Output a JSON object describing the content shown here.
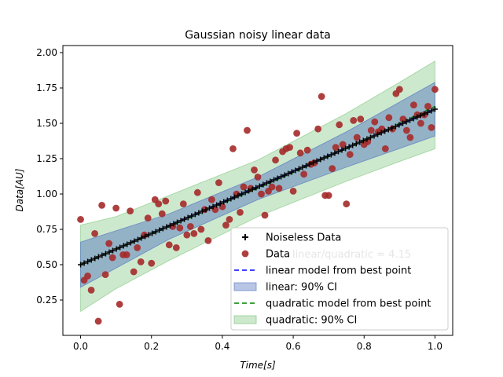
{
  "chart_data": {
    "type": "scatter",
    "title": "Gaussian noisy linear data",
    "xlabel": "Time[s]",
    "ylabel": "Data[AU]",
    "xlim": [
      -0.05,
      1.05
    ],
    "ylim": [
      0.0,
      2.05
    ],
    "xticks": [
      "0.0",
      "0.2",
      "0.4",
      "0.6",
      "0.8",
      "1.0"
    ],
    "yticks": [
      "0.25",
      "0.50",
      "0.75",
      "1.00",
      "1.25",
      "1.50",
      "1.75",
      "2.00"
    ],
    "grid": false,
    "legend_position": "lower right",
    "annotation": "linear/quadratic = 4.15",
    "colors": {
      "noiseless": "#000000",
      "data": "#a52a2a",
      "linear_line": "#0000ff",
      "linear_ci": "#4f6fbf",
      "quadratic_line": "#008000",
      "quadratic_ci": "#6fbf6f"
    },
    "legend": [
      {
        "key": "noiseless",
        "label": "Noiseless Data"
      },
      {
        "key": "data",
        "label": "Data"
      },
      {
        "key": "linear_line",
        "label": "linear model from best point"
      },
      {
        "key": "linear_ci",
        "label": "linear: 90% CI"
      },
      {
        "key": "quadratic_line",
        "label": "quadratic model from best point"
      },
      {
        "key": "quadratic_ci",
        "label": "quadratic: 90% CI"
      }
    ],
    "noiseless": {
      "x_start": 0.0,
      "x_end": 1.0,
      "y_start": 0.5,
      "y_end": 1.6,
      "count": 100
    },
    "linear_model": {
      "x": [
        0.0,
        1.0
      ],
      "y": [
        0.5,
        1.6
      ]
    },
    "quadratic_model": {
      "x": [
        0.0,
        0.25,
        0.5,
        0.75,
        1.0
      ],
      "y": [
        0.5,
        0.77,
        1.04,
        1.32,
        1.62
      ]
    },
    "linear_ci": {
      "x": [
        0.0,
        0.25,
        0.5,
        0.75,
        1.0
      ],
      "upper": [
        0.66,
        0.86,
        1.12,
        1.44,
        1.79
      ],
      "lower": [
        0.34,
        0.68,
        0.96,
        1.19,
        1.41
      ]
    },
    "quadratic_ci": {
      "x": [
        0.0,
        0.1,
        0.25,
        0.5,
        0.75,
        0.9,
        1.0
      ],
      "upper": [
        0.78,
        0.84,
        0.99,
        1.24,
        1.57,
        1.79,
        1.94
      ],
      "lower": [
        0.17,
        0.33,
        0.53,
        0.84,
        1.09,
        1.23,
        1.32
      ]
    },
    "data_points": {
      "x": [
        0.0,
        0.01,
        0.02,
        0.03,
        0.04,
        0.05,
        0.06,
        0.07,
        0.08,
        0.09,
        0.1,
        0.11,
        0.12,
        0.13,
        0.14,
        0.15,
        0.16,
        0.17,
        0.18,
        0.19,
        0.2,
        0.21,
        0.22,
        0.23,
        0.24,
        0.25,
        0.26,
        0.27,
        0.28,
        0.29,
        0.3,
        0.31,
        0.32,
        0.33,
        0.34,
        0.35,
        0.36,
        0.37,
        0.38,
        0.39,
        0.4,
        0.41,
        0.42,
        0.43,
        0.44,
        0.45,
        0.46,
        0.47,
        0.48,
        0.49,
        0.5,
        0.51,
        0.52,
        0.53,
        0.54,
        0.55,
        0.56,
        0.57,
        0.58,
        0.59,
        0.6,
        0.61,
        0.62,
        0.63,
        0.64,
        0.65,
        0.66,
        0.67,
        0.68,
        0.69,
        0.7,
        0.71,
        0.72,
        0.73,
        0.74,
        0.75,
        0.76,
        0.77,
        0.78,
        0.79,
        0.8,
        0.81,
        0.82,
        0.83,
        0.84,
        0.85,
        0.86,
        0.87,
        0.88,
        0.89,
        0.9,
        0.91,
        0.92,
        0.93,
        0.94,
        0.95,
        0.96,
        0.97,
        0.98,
        0.99,
        1.0
      ],
      "y": [
        0.82,
        0.39,
        0.42,
        0.32,
        0.72,
        0.1,
        0.92,
        0.43,
        0.65,
        0.55,
        0.9,
        0.22,
        0.57,
        0.57,
        0.88,
        0.45,
        0.62,
        0.52,
        0.71,
        0.83,
        0.51,
        0.96,
        0.93,
        0.86,
        0.95,
        0.64,
        0.77,
        0.62,
        0.76,
        0.93,
        0.71,
        0.77,
        0.72,
        1.01,
        0.75,
        0.89,
        0.67,
        0.96,
        0.89,
        1.08,
        0.91,
        0.78,
        0.82,
        1.32,
        1.0,
        0.87,
        1.05,
        1.45,
        1.04,
        1.17,
        1.12,
        1.0,
        0.85,
        1.02,
        1.05,
        1.24,
        1.04,
        1.3,
        1.32,
        1.33,
        1.02,
        1.43,
        1.29,
        1.14,
        1.31,
        1.21,
        1.22,
        1.46,
        1.69,
        0.99,
        0.99,
        1.18,
        1.33,
        1.49,
        1.35,
        0.93,
        1.28,
        1.52,
        1.4,
        1.53,
        1.35,
        1.37,
        1.45,
        1.51,
        1.44,
        1.46,
        1.32,
        1.54,
        1.46,
        1.71,
        1.74,
        1.53,
        1.45,
        1.4,
        1.63,
        1.56,
        1.5,
        1.56,
        1.62,
        1.47,
        1.74
      ]
    }
  }
}
